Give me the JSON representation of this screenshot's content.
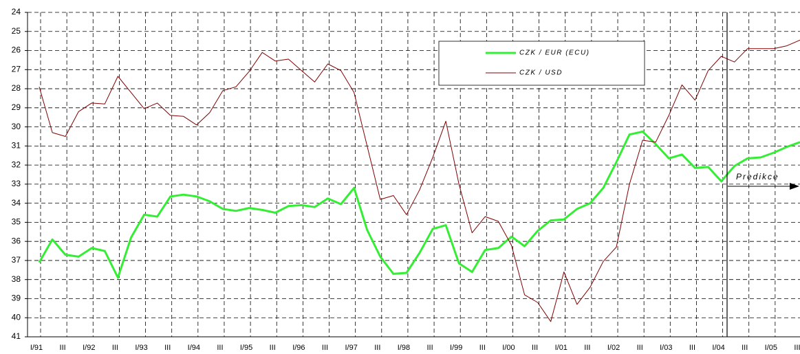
{
  "chart_data": {
    "type": "line",
    "categories": [
      "I/91",
      null,
      "III",
      null,
      "I/92",
      null,
      "III",
      null,
      "I/93",
      null,
      "III",
      null,
      "I/94",
      null,
      "III",
      null,
      "I/95",
      null,
      "III",
      null,
      "I/96",
      null,
      "III",
      null,
      "I/97",
      null,
      "III",
      null,
      "I/98",
      null,
      "III",
      null,
      "I/99",
      null,
      "III",
      null,
      "I/00",
      null,
      "III",
      null,
      "I/01",
      null,
      "III",
      null,
      "I/02",
      null,
      "III",
      null,
      "I/03",
      null,
      "III",
      null,
      "I/04",
      null,
      "III",
      null,
      "I/05",
      null,
      "III"
    ],
    "series": [
      {
        "name": "CZK / EUR (ECU)",
        "color": "#33ee33",
        "values": [
          37.1,
          35.9,
          36.7,
          36.8,
          36.35,
          36.5,
          37.9,
          35.8,
          34.6,
          34.7,
          33.65,
          33.55,
          33.65,
          33.9,
          34.3,
          34.4,
          34.25,
          34.35,
          34.5,
          34.15,
          34.1,
          34.2,
          33.75,
          34.05,
          33.2,
          35.4,
          36.8,
          37.7,
          37.65,
          36.6,
          35.35,
          35.15,
          37.15,
          37.6,
          36.45,
          36.35,
          35.75,
          36.25,
          35.45,
          34.9,
          34.85,
          34.3,
          34.0,
          33.2,
          31.85,
          30.4,
          30.25,
          30.9,
          31.65,
          31.45,
          32.15,
          32.1,
          32.85,
          32.05,
          31.65,
          31.6,
          31.35,
          31.05,
          30.8
        ]
      },
      {
        "name": "CZK / USD",
        "color": "#800000",
        "values": [
          27.9,
          30.3,
          30.5,
          29.2,
          28.75,
          28.8,
          27.35,
          28.2,
          29.05,
          28.75,
          29.4,
          29.45,
          29.9,
          29.25,
          28.1,
          27.9,
          27.1,
          26.1,
          26.55,
          26.45,
          27.05,
          27.65,
          26.7,
          27.05,
          28.2,
          31.0,
          33.8,
          33.6,
          34.6,
          33.3,
          31.6,
          29.7,
          33.0,
          35.55,
          34.7,
          34.95,
          36.2,
          38.8,
          39.2,
          40.2,
          37.6,
          39.3,
          38.4,
          37.05,
          36.3,
          33.0,
          30.7,
          30.8,
          29.4,
          27.8,
          28.6,
          27.05,
          26.3,
          26.6,
          25.9,
          25.9,
          25.9,
          25.75,
          25.45
        ]
      }
    ],
    "ylim": [
      24,
      41
    ],
    "y_inverted": true,
    "yticks": [
      24,
      25,
      26,
      27,
      28,
      29,
      30,
      31,
      32,
      33,
      34,
      35,
      36,
      37,
      38,
      39,
      40,
      41
    ],
    "grid": true,
    "legend": "upper right",
    "annotation": "Predikce"
  }
}
